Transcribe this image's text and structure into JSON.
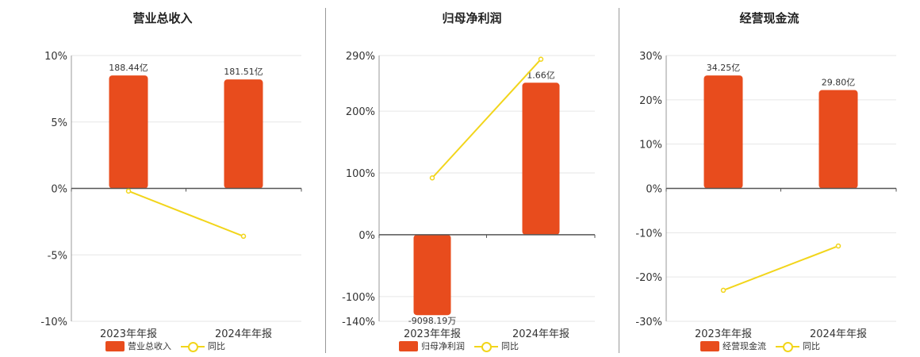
{
  "colors": {
    "bar": "#E84C1D",
    "line": "#F2D51B",
    "axis": "#555555",
    "grid": "#E6E6E6"
  },
  "chart_data": [
    {
      "type": "bar",
      "title": "营业总收入",
      "categories": [
        "2023年年报",
        "2024年年报"
      ],
      "series": [
        {
          "name": "营业总收入",
          "type": "bar",
          "values": [
            8.5,
            8.2
          ],
          "labels": [
            "188.44亿",
            "181.51亿"
          ]
        },
        {
          "name": "同比",
          "type": "line",
          "values": [
            -0.2,
            -3.6
          ]
        }
      ],
      "yticks": [
        "10%",
        "5%",
        "0%",
        "-5%",
        "-10%"
      ],
      "ylim": [
        -10,
        10
      ],
      "legend": "bottom"
    },
    {
      "type": "bar",
      "title": "归母净利润",
      "categories": [
        "2023年年报",
        "2024年年报"
      ],
      "series": [
        {
          "name": "归母净利润",
          "type": "bar",
          "values": [
            -130,
            246
          ],
          "labels": [
            "-9098.19万",
            "1.66亿"
          ]
        },
        {
          "name": "同比",
          "type": "line",
          "values": [
            92,
            284
          ]
        }
      ],
      "yticks": [
        "290%",
        "200%",
        "100%",
        "0%",
        "-100%",
        "-140%"
      ],
      "ylim": [
        -140,
        290
      ],
      "legend": "bottom"
    },
    {
      "type": "bar",
      "title": "经营现金流",
      "categories": [
        "2023年年报",
        "2024年年报"
      ],
      "series": [
        {
          "name": "经营现金流",
          "type": "bar",
          "values": [
            25.5,
            22.2
          ],
          "labels": [
            "34.25亿",
            "29.80亿"
          ]
        },
        {
          "name": "同比",
          "type": "line",
          "values": [
            -23,
            -13
          ]
        }
      ],
      "yticks": [
        "30%",
        "20%",
        "10%",
        "0%",
        "-10%",
        "-20%",
        "-30%"
      ],
      "ylim": [
        -30,
        30
      ],
      "legend": "bottom"
    }
  ]
}
